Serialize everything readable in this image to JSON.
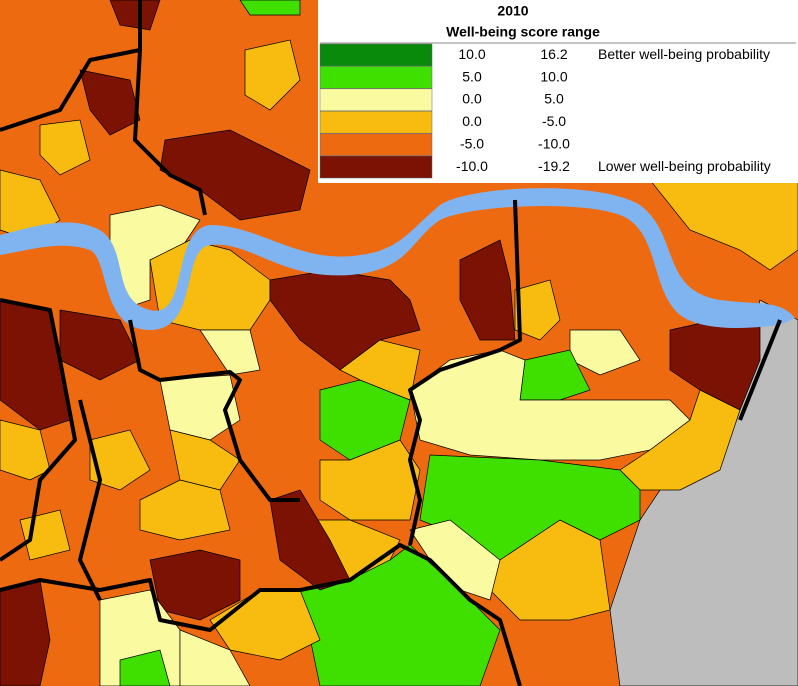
{
  "title": "2010",
  "subtitle": "Well-being score range",
  "legend": [
    {
      "color": "#0a8a0a",
      "from": "10.0",
      "to": "16.2",
      "label": "Better well-being probability"
    },
    {
      "color": "#3fe000",
      "from": "5.0",
      "to": "10.0"
    },
    {
      "color": "#fafaa0",
      "from": "0.0",
      "to": "5.0"
    },
    {
      "color": "#f8bc10",
      "from": "0.0",
      "to": "-5.0"
    },
    {
      "color": "#ee6a10",
      "from": "-5.0",
      "to": "-10.0"
    },
    {
      "color": "#7c1204",
      "from": "-10.0",
      "to": "-19.2",
      "label": "Lower well-being probability"
    }
  ]
}
